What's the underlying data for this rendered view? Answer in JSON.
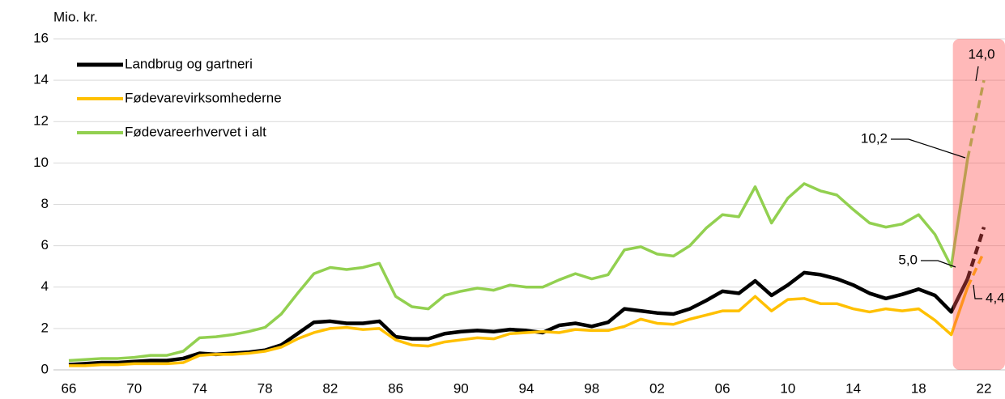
{
  "chart_data": {
    "type": "line",
    "y_axis_label": "Mio. kr.",
    "categories": [
      "66",
      null,
      null,
      null,
      "70",
      null,
      null,
      null,
      "74",
      null,
      null,
      null,
      "78",
      null,
      null,
      null,
      "82",
      null,
      null,
      null,
      "86",
      null,
      null,
      null,
      "90",
      null,
      null,
      null,
      "94",
      null,
      null,
      null,
      "98",
      null,
      null,
      null,
      "02",
      null,
      null,
      null,
      "06",
      null,
      null,
      null,
      "10",
      null,
      null,
      null,
      "14",
      null,
      null,
      null,
      "18",
      null,
      null,
      null,
      "22"
    ],
    "ylim": [
      0,
      16
    ],
    "yticks": [
      0,
      2,
      4,
      6,
      8,
      10,
      12,
      14,
      16
    ],
    "grid": true,
    "legend": "upper left",
    "series": [
      {
        "name": "Landbrug og gartneri",
        "color": "#000000",
        "values": [
          0.25,
          0.3,
          0.35,
          0.35,
          0.4,
          0.45,
          0.45,
          0.55,
          0.8,
          0.75,
          0.8,
          0.85,
          0.95,
          1.2,
          1.75,
          2.3,
          2.35,
          2.25,
          2.25,
          2.35,
          1.6,
          1.5,
          1.5,
          1.75,
          1.85,
          1.9,
          1.85,
          1.95,
          1.9,
          1.8,
          2.15,
          2.25,
          2.1,
          2.3,
          2.95,
          2.85,
          2.75,
          2.7,
          2.95,
          3.35,
          3.8,
          3.7,
          4.3,
          3.6,
          4.1,
          4.7,
          4.6,
          4.4,
          4.1,
          3.7,
          3.45,
          3.65,
          3.9,
          3.6,
          2.8,
          4.4,
          null
        ],
        "projected_values": [
          null,
          null,
          null,
          null,
          null,
          null,
          null,
          null,
          null,
          null,
          null,
          null,
          null,
          null,
          null,
          null,
          null,
          null,
          null,
          null,
          null,
          null,
          null,
          null,
          null,
          null,
          null,
          null,
          null,
          null,
          null,
          null,
          null,
          null,
          null,
          null,
          null,
          null,
          null,
          null,
          null,
          null,
          null,
          null,
          null,
          null,
          null,
          null,
          null,
          null,
          null,
          null,
          null,
          null,
          null,
          null,
          6.9
        ]
      },
      {
        "name": "Fødevarevirksomhederne",
        "color": "#ffc000",
        "values": [
          0.2,
          0.2,
          0.25,
          0.25,
          0.3,
          0.3,
          0.3,
          0.35,
          0.7,
          0.75,
          0.75,
          0.8,
          0.9,
          1.1,
          1.5,
          1.8,
          2.0,
          2.05,
          1.95,
          2.0,
          1.45,
          1.2,
          1.15,
          1.35,
          1.45,
          1.55,
          1.5,
          1.75,
          1.8,
          1.85,
          1.8,
          1.95,
          1.9,
          1.9,
          2.1,
          2.45,
          2.25,
          2.2,
          2.45,
          2.65,
          2.85,
          2.85,
          3.55,
          2.85,
          3.4,
          3.45,
          3.2,
          3.2,
          2.95,
          2.8,
          2.95,
          2.85,
          2.95,
          2.4,
          1.7,
          4.0,
          null
        ],
        "projected_values": [
          null,
          null,
          null,
          null,
          null,
          null,
          null,
          null,
          null,
          null,
          null,
          null,
          null,
          null,
          null,
          null,
          null,
          null,
          null,
          null,
          null,
          null,
          null,
          null,
          null,
          null,
          null,
          null,
          null,
          null,
          null,
          null,
          null,
          null,
          null,
          null,
          null,
          null,
          null,
          null,
          null,
          null,
          null,
          null,
          null,
          null,
          null,
          null,
          null,
          null,
          null,
          null,
          null,
          null,
          null,
          null,
          5.7
        ]
      },
      {
        "name": "Fødevareerhvervet i alt",
        "color": "#92d050",
        "values": [
          0.45,
          0.5,
          0.55,
          0.55,
          0.6,
          0.7,
          0.7,
          0.9,
          1.55,
          1.6,
          1.7,
          1.85,
          2.05,
          2.7,
          3.7,
          4.65,
          4.95,
          4.85,
          4.95,
          5.15,
          3.55,
          3.05,
          2.95,
          3.6,
          3.8,
          3.95,
          3.85,
          4.1,
          4.0,
          4.0,
          4.35,
          4.65,
          4.4,
          4.6,
          5.8,
          5.95,
          5.6,
          5.5,
          6.0,
          6.85,
          7.5,
          7.4,
          8.85,
          7.1,
          8.3,
          9.0,
          8.65,
          8.45,
          7.75,
          7.1,
          6.9,
          7.05,
          7.5,
          6.55,
          5.0,
          10.2,
          null
        ],
        "projected_values": [
          null,
          null,
          null,
          null,
          null,
          null,
          null,
          null,
          null,
          null,
          null,
          null,
          null,
          null,
          null,
          null,
          null,
          null,
          null,
          null,
          null,
          null,
          null,
          null,
          null,
          null,
          null,
          null,
          null,
          null,
          null,
          null,
          null,
          null,
          null,
          null,
          null,
          null,
          null,
          null,
          null,
          null,
          null,
          null,
          null,
          null,
          null,
          null,
          null,
          null,
          null,
          null,
          null,
          null,
          null,
          null,
          14.0
        ]
      }
    ],
    "annotations": [
      "14,0",
      "10,2",
      "5,0",
      "4,4"
    ]
  }
}
